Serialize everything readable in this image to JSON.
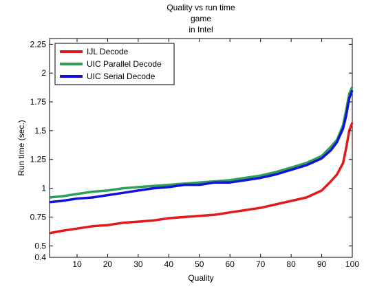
{
  "chart_data": {
    "type": "line",
    "title": [
      "Quality vs run time",
      "game",
      "in Intel"
    ],
    "xlabel": "Quality",
    "ylabel": "Run time (sec.)",
    "xlim": [
      1,
      100
    ],
    "ylim": [
      0.4,
      2.3
    ],
    "xticks": [
      10,
      20,
      30,
      40,
      50,
      60,
      70,
      80,
      90,
      100
    ],
    "yticks": [
      0.4,
      0.5,
      0.75,
      1,
      1.25,
      1.5,
      1.75,
      2,
      2.25
    ],
    "ytick_labels": [
      "0.4",
      "0.5",
      "0.75",
      "1",
      "1.25",
      "1.5",
      "1.75",
      "2",
      "2.25"
    ],
    "grid": false,
    "legend_position": "top-left",
    "x": [
      1,
      5,
      10,
      15,
      20,
      25,
      30,
      35,
      40,
      45,
      50,
      55,
      60,
      65,
      70,
      75,
      80,
      85,
      90,
      93,
      95,
      97,
      98,
      99,
      100
    ],
    "series": [
      {
        "name": "IJL Decode",
        "color": "#e31a1c",
        "values": [
          0.61,
          0.63,
          0.65,
          0.67,
          0.68,
          0.7,
          0.71,
          0.72,
          0.74,
          0.75,
          0.76,
          0.77,
          0.79,
          0.81,
          0.83,
          0.86,
          0.89,
          0.92,
          0.98,
          1.06,
          1.12,
          1.22,
          1.35,
          1.5,
          1.57
        ]
      },
      {
        "name": "UIC Parallel Decode",
        "color": "#2ca05a",
        "values": [
          0.92,
          0.93,
          0.95,
          0.97,
          0.98,
          1.0,
          1.01,
          1.02,
          1.03,
          1.04,
          1.05,
          1.06,
          1.07,
          1.09,
          1.11,
          1.14,
          1.18,
          1.22,
          1.28,
          1.36,
          1.42,
          1.55,
          1.68,
          1.82,
          1.88
        ]
      },
      {
        "name": "UIC Serial Decode",
        "color": "#1111dd",
        "values": [
          0.88,
          0.89,
          0.91,
          0.92,
          0.94,
          0.96,
          0.98,
          1.0,
          1.01,
          1.03,
          1.03,
          1.05,
          1.05,
          1.07,
          1.09,
          1.12,
          1.16,
          1.2,
          1.26,
          1.33,
          1.4,
          1.52,
          1.63,
          1.78,
          1.85
        ]
      }
    ]
  }
}
